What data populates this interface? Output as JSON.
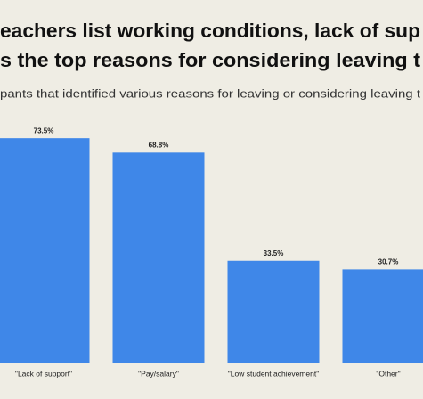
{
  "chart_data": {
    "type": "bar",
    "title": [
      "eachers list working conditions, lack of sup",
      "s the top reasons for considering leaving t"
    ],
    "subtitle": "pants that identified various reasons for leaving or considering leaving t",
    "categories": [
      "\"Lack of support\"",
      "\"Pay/salary\"",
      "\"Low student achievement\"",
      "\"Other\""
    ],
    "values": [
      73.5,
      68.8,
      33.5,
      30.7
    ],
    "value_labels": [
      "73.5%",
      "68.8%",
      "33.5%",
      "30.7%"
    ],
    "color": "#3f87e8"
  }
}
